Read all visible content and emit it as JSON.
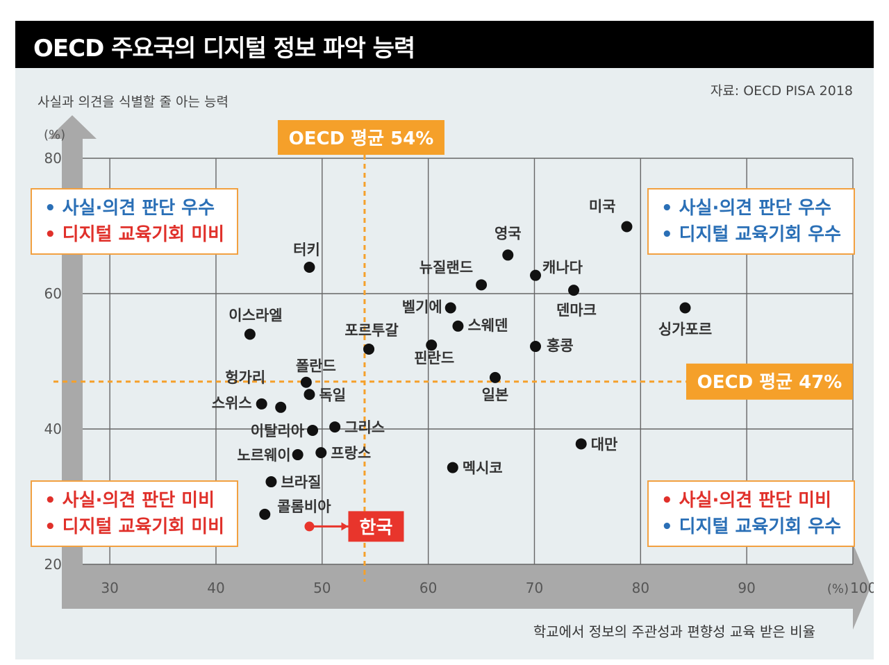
{
  "title": "OECD 주요국의 디지털 정보 파악 능력",
  "source": "자료: OECD PISA 2018",
  "colors": {
    "accent_orange": "#f5a02a",
    "korea_red": "#e8352c",
    "blue_text": "#2a6fb6",
    "red_text": "#e0302a",
    "point": "#111111",
    "grid": "#666666",
    "panel_bg": "#e8eef0"
  },
  "quadrants": {
    "top_left": {
      "line1": "• 사실·의견 판단 우수",
      "line2": "• 디지털 교육기회 미비"
    },
    "top_right": {
      "line1": "• 사실·의견 판단 우수",
      "line2": "• 디지털 교육기회 우수"
    },
    "bottom_left": {
      "line1": "• 사실·의견 판단 미비",
      "line2": "• 디지털 교육기회 미비"
    },
    "bottom_right": {
      "line1": "• 사실·의견 판단 미비",
      "line2": "• 디지털 교육기회 우수"
    }
  },
  "chart_data": {
    "type": "scatter",
    "title": "OECD 주요국의 디지털 정보 파악 능력",
    "xlabel": "학교에서 정보의 주관성과 편향성 교육 받은 비율",
    "ylabel": "사실과 의견을 식별할 줄 아는 능력",
    "x_unit": "(%)",
    "y_unit": "(%)",
    "xlim": [
      26,
      100
    ],
    "ylim": [
      20,
      80
    ],
    "xticks": [
      30,
      40,
      50,
      60,
      70,
      80,
      90,
      100
    ],
    "yticks": [
      20,
      40,
      60,
      80
    ],
    "grid": true,
    "reference_lines": [
      {
        "axis": "x",
        "value": 54,
        "label": "OECD 평균 54%"
      },
      {
        "axis": "y",
        "value": 47,
        "label": "OECD 평균 47%"
      }
    ],
    "points": [
      {
        "name": "미국",
        "x": 78.7,
        "y": 69.9
      },
      {
        "name": "영국",
        "x": 67.5,
        "y": 65.7
      },
      {
        "name": "터키",
        "x": 48.8,
        "y": 63.9
      },
      {
        "name": "캐나다",
        "x": 70.1,
        "y": 62.7
      },
      {
        "name": "뉴질랜드",
        "x": 65.0,
        "y": 61.3
      },
      {
        "name": "덴마크",
        "x": 73.7,
        "y": 60.5
      },
      {
        "name": "싱가포르",
        "x": 84.2,
        "y": 57.9
      },
      {
        "name": "벨기에",
        "x": 62.1,
        "y": 57.9
      },
      {
        "name": "스웨덴",
        "x": 62.8,
        "y": 55.2
      },
      {
        "name": "이스라엘",
        "x": 43.2,
        "y": 54.0
      },
      {
        "name": "핀란드",
        "x": 60.3,
        "y": 52.4
      },
      {
        "name": "홍콩",
        "x": 70.1,
        "y": 52.2
      },
      {
        "name": "포르투갈",
        "x": 54.4,
        "y": 51.8
      },
      {
        "name": "일본",
        "x": 66.3,
        "y": 47.6
      },
      {
        "name": "폴란드",
        "x": 48.5,
        "y": 46.9
      },
      {
        "name": "독일",
        "x": 48.8,
        "y": 45.1
      },
      {
        "name": "헝가리",
        "x": 46.1,
        "y": 43.2
      },
      {
        "name": "스위스",
        "x": 44.3,
        "y": 43.7
      },
      {
        "name": "그리스",
        "x": 51.2,
        "y": 40.3
      },
      {
        "name": "이탈리아",
        "x": 49.1,
        "y": 39.8
      },
      {
        "name": "대만",
        "x": 74.4,
        "y": 37.8
      },
      {
        "name": "프랑스",
        "x": 49.9,
        "y": 36.5
      },
      {
        "name": "노르웨이",
        "x": 47.7,
        "y": 36.2
      },
      {
        "name": "멕시코",
        "x": 62.3,
        "y": 34.3
      },
      {
        "name": "브라질",
        "x": 45.2,
        "y": 32.2
      },
      {
        "name": "콜롬비아",
        "x": 44.6,
        "y": 27.4
      },
      {
        "name": "한국",
        "x": 48.8,
        "y": 25.6,
        "highlight": true
      }
    ]
  }
}
